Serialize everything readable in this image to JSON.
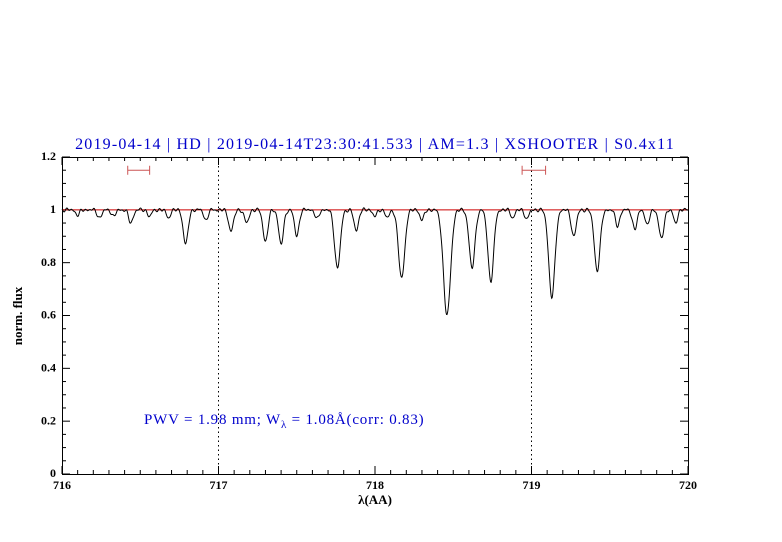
{
  "title": "2019-04-14 | HD | 2019-04-14T23:30:41.533 | AM=1.3 | XSHOOTER | S0.4x11",
  "annotation": {
    "prefix": "PWV = 1.98 mm; W",
    "sub": "λ",
    "suffix": " = 1.08Å(corr: 0.83)"
  },
  "colors": {
    "title": "#0000cc",
    "annotation": "#0000cc",
    "axis": "#000000"
  },
  "chart_data": {
    "type": "line",
    "title": "2019-04-14 | HD | 2019-04-14T23:30:41.533 | AM=1.3 | XSHOOTER | S0.4x11",
    "xlabel": "λ(AA)",
    "ylabel": "norm. flux",
    "xlim": [
      716,
      720
    ],
    "ylim": [
      0,
      1.2
    ],
    "x_major_ticks": [
      716,
      717,
      718,
      719,
      720
    ],
    "x_minor_step": 0.1,
    "y_major_ticks": [
      0,
      0.2,
      0.4,
      0.6,
      0.8,
      1,
      1.2
    ],
    "y_minor_step": 0.05,
    "grid": false,
    "legend": "none",
    "dotted_vlines": [
      717,
      719
    ],
    "continuum": {
      "y": 1.0,
      "color": "#cc0000"
    },
    "interval_markers": {
      "y": 1.15,
      "color": "#cc5555",
      "ranges": [
        [
          716.42,
          716.56
        ],
        [
          718.94,
          719.09
        ]
      ]
    },
    "spectrum_color": "#000000",
    "noise_amplitude": 0.0035,
    "sample_step": 0.003,
    "absorption_lines_format": [
      "center_AA",
      "depth_norm_flux",
      "gaussian_width_AA"
    ],
    "absorption_lines": [
      [
        716.1,
        0.02,
        0.018
      ],
      [
        716.24,
        0.03,
        0.02
      ],
      [
        716.33,
        0.025,
        0.018
      ],
      [
        716.44,
        0.05,
        0.02
      ],
      [
        716.56,
        0.025,
        0.018
      ],
      [
        716.68,
        0.03,
        0.018
      ],
      [
        716.79,
        0.13,
        0.022
      ],
      [
        716.92,
        0.04,
        0.018
      ],
      [
        717.08,
        0.08,
        0.022
      ],
      [
        717.18,
        0.05,
        0.02
      ],
      [
        717.3,
        0.12,
        0.022
      ],
      [
        717.4,
        0.13,
        0.022
      ],
      [
        717.5,
        0.1,
        0.02
      ],
      [
        717.63,
        0.035,
        0.018
      ],
      [
        717.76,
        0.22,
        0.026
      ],
      [
        717.88,
        0.08,
        0.02
      ],
      [
        718.0,
        0.025,
        0.018
      ],
      [
        718.08,
        0.03,
        0.018
      ],
      [
        718.17,
        0.26,
        0.028
      ],
      [
        718.3,
        0.04,
        0.018
      ],
      [
        718.46,
        0.4,
        0.032
      ],
      [
        718.62,
        0.22,
        0.026
      ],
      [
        718.74,
        0.27,
        0.026
      ],
      [
        718.88,
        0.03,
        0.018
      ],
      [
        718.97,
        0.035,
        0.018
      ],
      [
        719.13,
        0.33,
        0.028
      ],
      [
        719.27,
        0.1,
        0.022
      ],
      [
        719.42,
        0.23,
        0.026
      ],
      [
        719.55,
        0.06,
        0.02
      ],
      [
        719.66,
        0.075,
        0.02
      ],
      [
        719.74,
        0.06,
        0.018
      ],
      [
        719.83,
        0.11,
        0.022
      ],
      [
        719.92,
        0.05,
        0.018
      ]
    ]
  }
}
